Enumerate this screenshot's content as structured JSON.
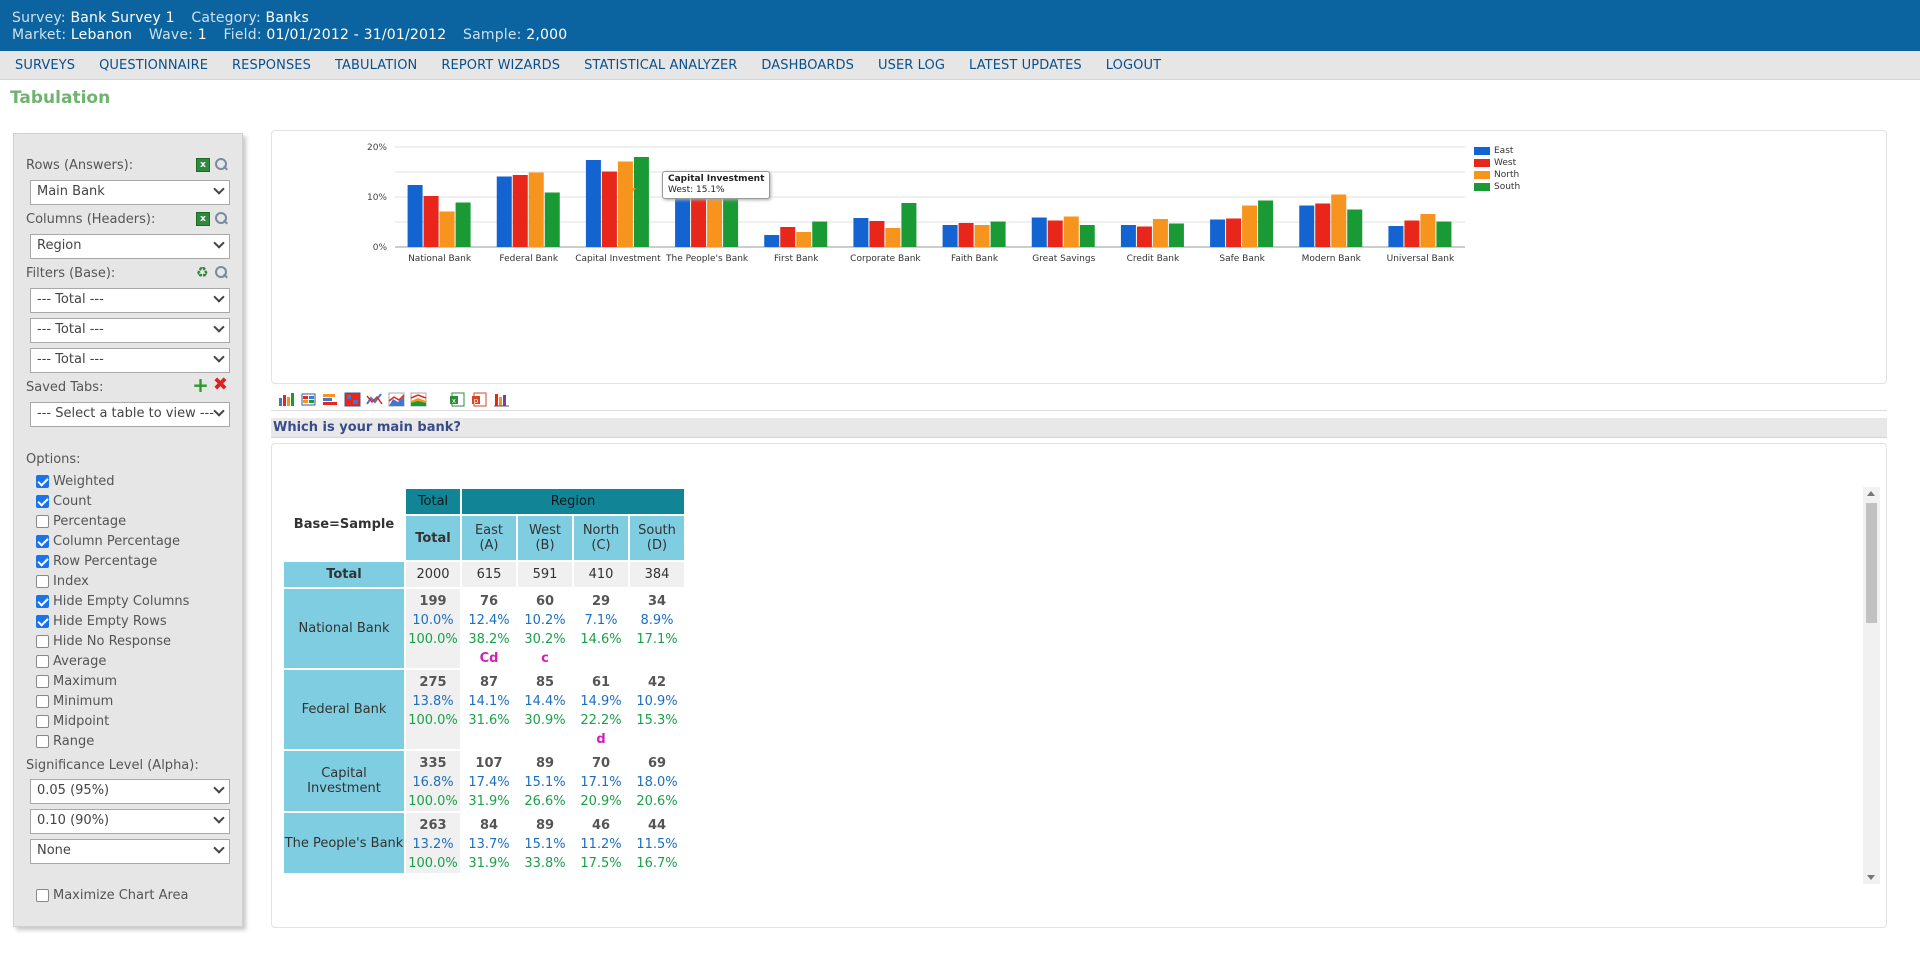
{
  "header": {
    "survey_label": "Survey:",
    "survey": "Bank Survey 1",
    "category_label": "Category:",
    "category": "Banks",
    "market_label": "Market:",
    "market": "Lebanon",
    "wave_label": "Wave:",
    "wave": "1",
    "field_label": "Field:",
    "field": "01/01/2012 - 31/01/2012",
    "sample_label": "Sample:",
    "sample": "2,000"
  },
  "nav": [
    "SURVEYS",
    "QUESTIONNAIRE",
    "RESPONSES",
    "TABULATION",
    "REPORT WIZARDS",
    "STATISTICAL ANALYZER",
    "DASHBOARDS",
    "USER LOG",
    "LATEST UPDATES",
    "LOGOUT"
  ],
  "page_title": "Tabulation",
  "sidebar": {
    "rows_label": "Rows (Answers):",
    "rows_value": "Main Bank",
    "columns_label": "Columns (Headers):",
    "columns_value": "Region",
    "filters_label": "Filters (Base):",
    "filters": [
      "--- Total ---",
      "--- Total ---",
      "--- Total ---"
    ],
    "saved_label": "Saved Tabs:",
    "saved_value": "--- Select a table to view ---",
    "options_label": "Options:",
    "options": [
      {
        "label": "Weighted",
        "checked": true
      },
      {
        "label": "Count",
        "checked": true
      },
      {
        "label": "Percentage",
        "checked": false
      },
      {
        "label": "Column Percentage",
        "checked": true
      },
      {
        "label": "Row Percentage",
        "checked": true
      },
      {
        "label": "Index",
        "checked": false
      },
      {
        "label": "Hide Empty Columns",
        "checked": true
      },
      {
        "label": "Hide Empty Rows",
        "checked": true
      },
      {
        "label": "Hide No Response",
        "checked": false
      },
      {
        "label": "Average",
        "checked": false
      },
      {
        "label": "Maximum",
        "checked": false
      },
      {
        "label": "Minimum",
        "checked": false
      },
      {
        "label": "Midpoint",
        "checked": false
      },
      {
        "label": "Range",
        "checked": false
      }
    ],
    "sig_label": "Significance Level (Alpha):",
    "sig_values": [
      "0.05 (95%)",
      "0.10 (90%)",
      "None"
    ],
    "maximize_label": "Maximize Chart Area"
  },
  "chart_data": {
    "type": "bar",
    "categories": [
      "National Bank",
      "Federal Bank",
      "Capital Investment",
      "The People's Bank",
      "First Bank",
      "Corporate Bank",
      "Faith Bank",
      "Great Savings",
      "Credit Bank",
      "Safe Bank",
      "Modern Bank",
      "Universal Bank"
    ],
    "series": [
      {
        "name": "East",
        "color": "#1363d1",
        "values": [
          12.4,
          14.1,
          17.4,
          13.7,
          2.4,
          5.8,
          4.4,
          5.9,
          4.4,
          5.5,
          8.3,
          4.2
        ]
      },
      {
        "name": "West",
        "color": "#e8271a",
        "values": [
          10.2,
          14.4,
          15.1,
          15.1,
          4.0,
          5.2,
          4.8,
          5.3,
          4.1,
          5.7,
          8.7,
          5.3
        ]
      },
      {
        "name": "North",
        "color": "#f7941d",
        "values": [
          7.1,
          14.9,
          17.1,
          11.2,
          3.0,
          3.8,
          4.4,
          6.1,
          5.6,
          8.3,
          10.5,
          6.6
        ]
      },
      {
        "name": "South",
        "color": "#1a9a34",
        "values": [
          8.9,
          10.9,
          18.0,
          11.5,
          5.1,
          8.8,
          5.1,
          4.4,
          4.7,
          9.3,
          7.5,
          5.1
        ]
      }
    ],
    "yticks": [
      "0%",
      "10%",
      "20%"
    ],
    "ylim": [
      0,
      20
    ],
    "legend_position": "right",
    "grid": true,
    "tooltip": {
      "title": "Capital Investment",
      "text": "West: 15.1%"
    }
  },
  "question": "Which is your main bank?",
  "table": {
    "base_label": "Base=Sample",
    "total_header": "Total",
    "region_header": "Region",
    "col_total": "Total",
    "columns": [
      {
        "name": "East",
        "letter": "(A)"
      },
      {
        "name": "West",
        "letter": "(B)"
      },
      {
        "name": "North",
        "letter": "(C)"
      },
      {
        "name": "South",
        "letter": "(D)"
      }
    ],
    "total_row": {
      "label": "Total",
      "values": [
        "2000",
        "615",
        "591",
        "410",
        "384"
      ]
    },
    "rows": [
      {
        "label": "National Bank",
        "total": {
          "count": "199",
          "col": "10.0%",
          "row": "100.0%"
        },
        "cells": [
          {
            "count": "76",
            "col": "12.4%",
            "row": "38.2%",
            "sig": "Cd"
          },
          {
            "count": "60",
            "col": "10.2%",
            "row": "30.2%",
            "sig": "c"
          },
          {
            "count": "29",
            "col": "7.1%",
            "row": "14.6%",
            "sig": ""
          },
          {
            "count": "34",
            "col": "8.9%",
            "row": "17.1%",
            "sig": ""
          }
        ]
      },
      {
        "label": "Federal Bank",
        "total": {
          "count": "275",
          "col": "13.8%",
          "row": "100.0%"
        },
        "cells": [
          {
            "count": "87",
            "col": "14.1%",
            "row": "31.6%",
            "sig": ""
          },
          {
            "count": "85",
            "col": "14.4%",
            "row": "30.9%",
            "sig": ""
          },
          {
            "count": "61",
            "col": "14.9%",
            "row": "22.2%",
            "sig": "d"
          },
          {
            "count": "42",
            "col": "10.9%",
            "row": "15.3%",
            "sig": ""
          }
        ]
      },
      {
        "label": "Capital Investment",
        "total": {
          "count": "335",
          "col": "16.8%",
          "row": "100.0%"
        },
        "cells": [
          {
            "count": "107",
            "col": "17.4%",
            "row": "31.9%",
            "sig": ""
          },
          {
            "count": "89",
            "col": "15.1%",
            "row": "26.6%",
            "sig": ""
          },
          {
            "count": "70",
            "col": "17.1%",
            "row": "20.9%",
            "sig": ""
          },
          {
            "count": "69",
            "col": "18.0%",
            "row": "20.6%",
            "sig": ""
          }
        ]
      },
      {
        "label": "The People's Bank",
        "total": {
          "count": "263",
          "col": "13.2%",
          "row": "100.0%"
        },
        "cells": [
          {
            "count": "84",
            "col": "13.7%",
            "row": "31.9%",
            "sig": ""
          },
          {
            "count": "89",
            "col": "15.1%",
            "row": "33.8%",
            "sig": ""
          },
          {
            "count": "46",
            "col": "11.2%",
            "row": "17.5%",
            "sig": ""
          },
          {
            "count": "44",
            "col": "11.5%",
            "row": "16.7%",
            "sig": ""
          }
        ]
      }
    ]
  }
}
